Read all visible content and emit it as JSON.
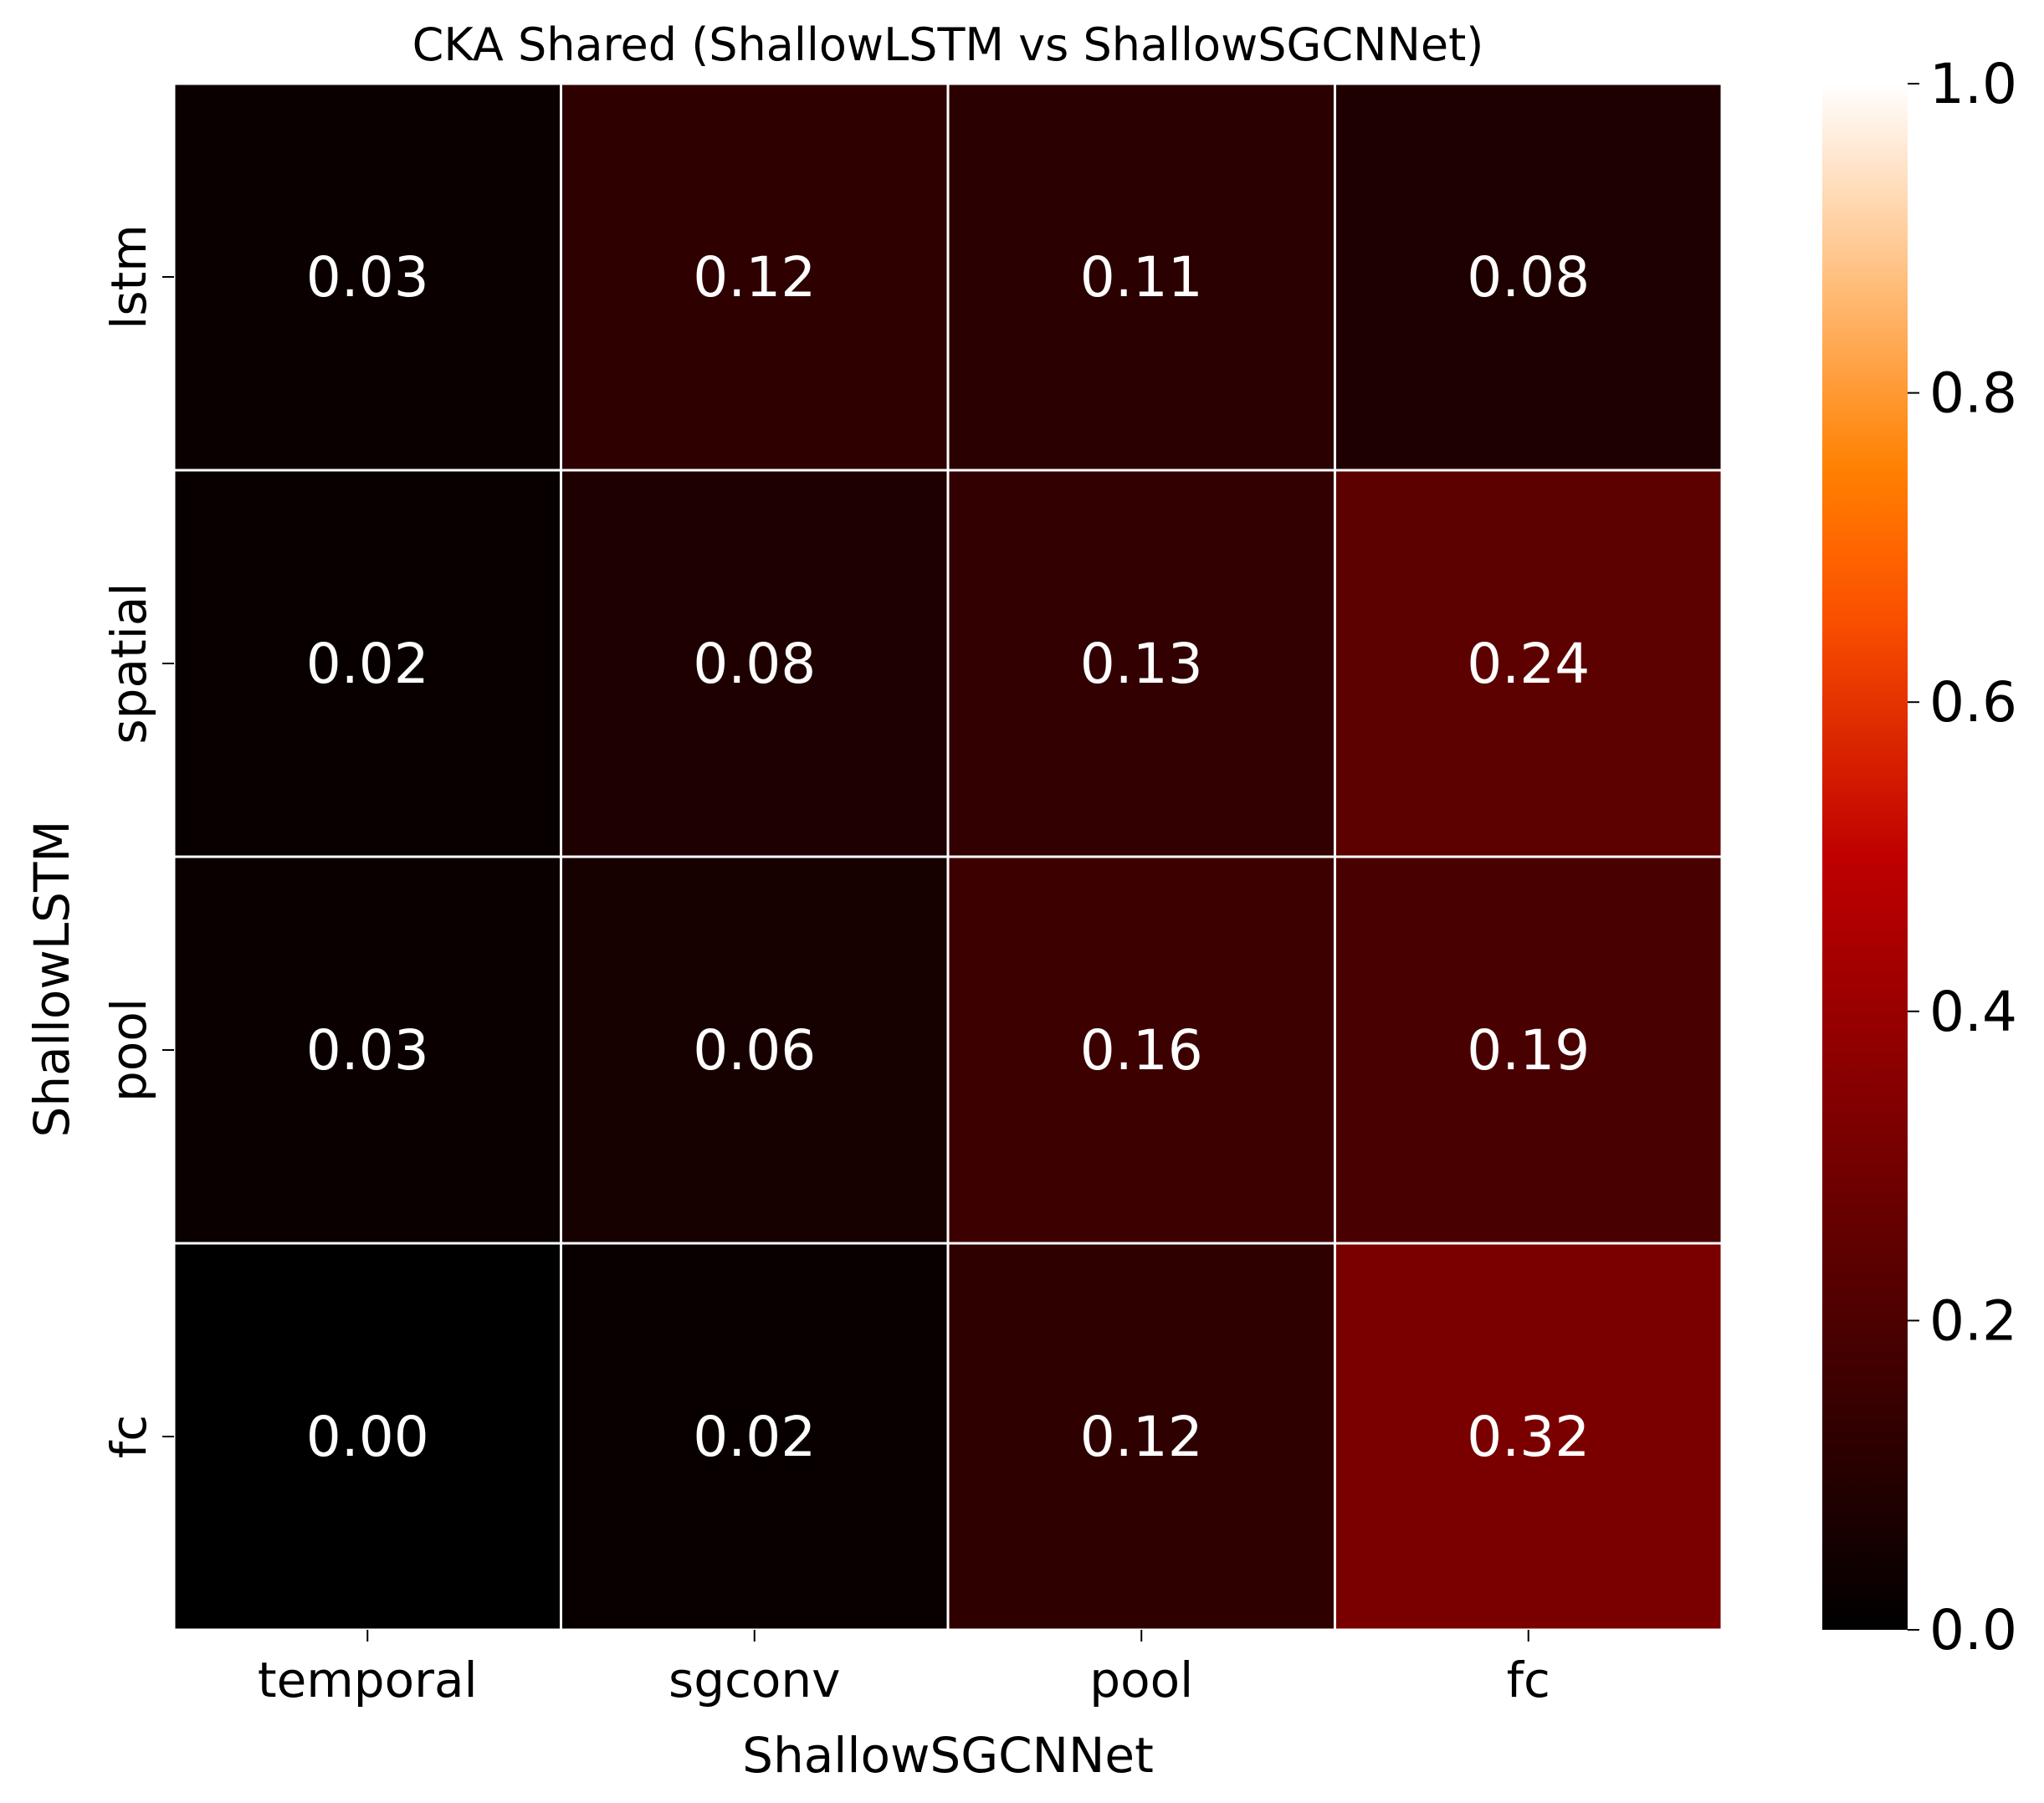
{
  "chart_data": {
    "type": "heatmap",
    "title": "CKA Shared (ShallowLSTM vs ShallowSGCNNet)",
    "xlabel": "ShallowSGCNNet",
    "ylabel": "ShallowLSTM",
    "x_categories": [
      "temporal",
      "sgconv",
      "pool",
      "fc"
    ],
    "y_categories": [
      "lstm",
      "spatial",
      "pool",
      "fc"
    ],
    "values": [
      [
        0.03,
        0.12,
        0.11,
        0.08
      ],
      [
        0.02,
        0.08,
        0.13,
        0.24
      ],
      [
        0.03,
        0.06,
        0.16,
        0.19
      ],
      [
        0.0,
        0.02,
        0.12,
        0.32
      ]
    ],
    "value_labels": [
      [
        "0.03",
        "0.12",
        "0.11",
        "0.08"
      ],
      [
        "0.02",
        "0.08",
        "0.13",
        "0.24"
      ],
      [
        "0.03",
        "0.06",
        "0.16",
        "0.19"
      ],
      [
        "0.00",
        "0.02",
        "0.12",
        "0.32"
      ]
    ],
    "colormap": "gist_heat",
    "cell_border_color": "#ffffff",
    "annotation_color": "#ffffff",
    "colorbar": {
      "range": [
        0,
        1
      ],
      "ticks": [
        0.0,
        0.2,
        0.4,
        0.6,
        0.8,
        1.0
      ],
      "tick_labels": [
        "0.0",
        "0.2",
        "0.4",
        "0.6",
        "0.8",
        "1.0"
      ]
    }
  }
}
